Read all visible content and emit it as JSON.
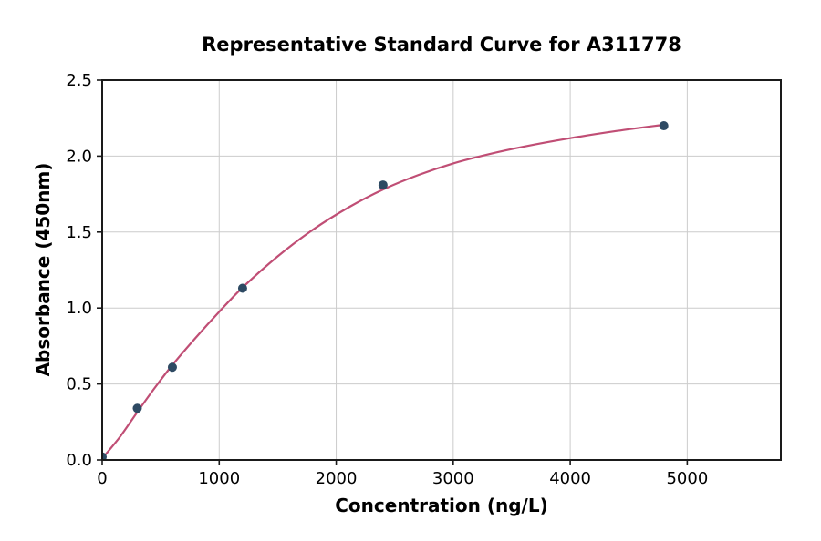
{
  "chart_data": {
    "type": "scatter",
    "title": "Representative Standard Curve for A311778",
    "xlabel": "Concentration (ng/L)",
    "ylabel": "Absorbance (450nm)",
    "xlim": [
      0,
      5800
    ],
    "ylim": [
      0,
      2.5
    ],
    "grid": true,
    "legend": "none",
    "x_ticks": [
      0,
      1000,
      2000,
      3000,
      4000,
      5000
    ],
    "x_tick_labels": [
      "0",
      "1000",
      "2000",
      "3000",
      "4000",
      "5000"
    ],
    "y_ticks": [
      0.0,
      0.5,
      1.0,
      1.5,
      2.0,
      2.5
    ],
    "y_tick_labels": [
      "0.0",
      "0.5",
      "1.0",
      "1.5",
      "2.0",
      "2.5"
    ],
    "points": {
      "x": [
        0,
        300,
        600,
        1200,
        2400,
        4800
      ],
      "y": [
        0.02,
        0.34,
        0.61,
        1.13,
        1.81,
        2.2
      ]
    },
    "fit_curve": {
      "x": [
        0,
        150,
        300,
        450,
        600,
        800,
        1000,
        1200,
        1500,
        1800,
        2100,
        2400,
        2700,
        3000,
        3300,
        3600,
        4000,
        4400,
        4800
      ],
      "y": [
        0.01,
        0.15,
        0.315,
        0.475,
        0.625,
        0.805,
        0.975,
        1.135,
        1.34,
        1.515,
        1.66,
        1.78,
        1.875,
        1.952,
        2.012,
        2.062,
        2.118,
        2.166,
        2.207
      ]
    },
    "colors": {
      "marker": "#2e4a63",
      "curve": "#c04e75",
      "grid": "#cccccc",
      "spine": "#1a1a1a",
      "text": "#000000",
      "background": "#ffffff"
    }
  }
}
